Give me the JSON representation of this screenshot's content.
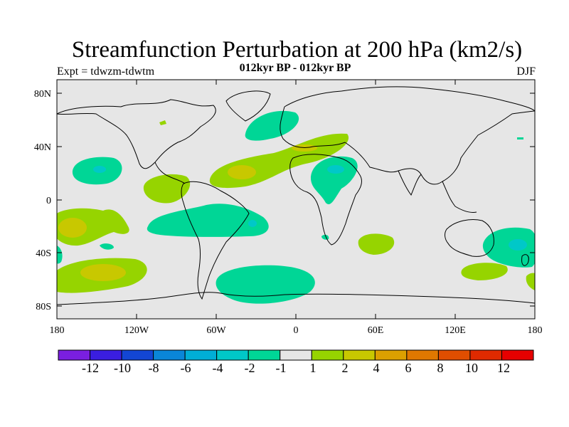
{
  "header": {
    "title": "Streamfunction Perturbation at 200 hPa (km2/s)",
    "subtitle": "012kyr BP - 012kyr BP",
    "left_label": "Expt = tdwzm-tdwtm",
    "right_label": "DJF"
  },
  "map": {
    "type": "filled-contour-map",
    "projection": "cylindrical-equidistant",
    "background_color": "#e6e6e6",
    "lat_ticks": [
      "80N",
      "40N",
      "0",
      "40S",
      "80S"
    ],
    "lon_ticks": [
      "180",
      "120W",
      "60W",
      "0",
      "60E",
      "120E",
      "180"
    ]
  },
  "colorbar": {
    "labels": [
      "-12",
      "-10",
      "-8",
      "-6",
      "-4",
      "-2",
      "-1",
      "1",
      "2",
      "4",
      "6",
      "8",
      "10",
      "12"
    ],
    "colors": [
      "#7a1fe0",
      "#3a1ee0",
      "#1346d4",
      "#0a86d8",
      "#00aed6",
      "#00c8c8",
      "#00d696",
      "#e6e6e6",
      "#96d400",
      "#c8c800",
      "#dca000",
      "#e07800",
      "#e04e00",
      "#e02a00",
      "#e60000"
    ]
  }
}
